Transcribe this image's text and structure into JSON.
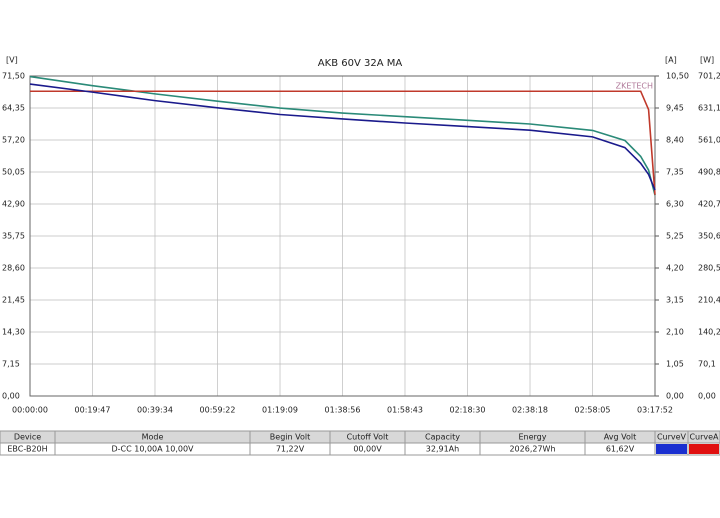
{
  "chart_data": {
    "type": "line",
    "title": "AKB 60V 32A MA",
    "watermark": "ZKETECH",
    "y_unit": "[V]",
    "y2_unit": "[A]",
    "y3_unit": "[W]",
    "x": [
      0,
      1187,
      2374,
      3562,
      4749,
      5936,
      7123,
      8310,
      9498,
      10685,
      11300,
      11600,
      11750,
      11872
    ],
    "xlim": [
      0,
      11872
    ],
    "xticks": [
      {
        "value": 0,
        "label": "00:00:00"
      },
      {
        "value": 1187,
        "label": "00:19:47"
      },
      {
        "value": 2374,
        "label": "00:39:34"
      },
      {
        "value": 3562,
        "label": "00:59:22"
      },
      {
        "value": 4749,
        "label": "01:19:09"
      },
      {
        "value": 5936,
        "label": "01:38:56"
      },
      {
        "value": 7123,
        "label": "01:58:43"
      },
      {
        "value": 8310,
        "label": "02:18:30"
      },
      {
        "value": 9498,
        "label": "02:38:18"
      },
      {
        "value": 10685,
        "label": "02:58:05"
      },
      {
        "value": 11872,
        "label": "03:17:52"
      }
    ],
    "ylim": [
      0,
      71.5
    ],
    "yticks": [
      {
        "value": 0,
        "label": "0,00"
      },
      {
        "value": 7.15,
        "label": "7,15"
      },
      {
        "value": 14.3,
        "label": "14,30"
      },
      {
        "value": 21.45,
        "label": "21,45"
      },
      {
        "value": 28.6,
        "label": "28,60"
      },
      {
        "value": 35.75,
        "label": "35,75"
      },
      {
        "value": 42.9,
        "label": "42,90"
      },
      {
        "value": 50.05,
        "label": "50,05"
      },
      {
        "value": 57.2,
        "label": "57,20"
      },
      {
        "value": 64.35,
        "label": "64,35"
      },
      {
        "value": 71.5,
        "label": "71,50"
      }
    ],
    "y2lim": [
      0,
      10.5
    ],
    "y2ticks": [
      {
        "value": 0,
        "label": "0,00"
      },
      {
        "value": 1.05,
        "label": "1,05"
      },
      {
        "value": 2.1,
        "label": "2,10"
      },
      {
        "value": 3.15,
        "label": "3,15"
      },
      {
        "value": 4.2,
        "label": "4,20"
      },
      {
        "value": 5.25,
        "label": "5,25"
      },
      {
        "value": 6.3,
        "label": "6,30"
      },
      {
        "value": 7.35,
        "label": "7,35"
      },
      {
        "value": 8.4,
        "label": "8,40"
      },
      {
        "value": 9.45,
        "label": "9,45"
      },
      {
        "value": 10.5,
        "label": "10,50"
      }
    ],
    "y3lim": [
      0,
      701.2
    ],
    "y3ticks": [
      {
        "value": 0,
        "label": "0,00"
      },
      {
        "value": 70.1,
        "label": "70,1"
      },
      {
        "value": 140.2,
        "label": "140,2"
      },
      {
        "value": 210.4,
        "label": "210,4"
      },
      {
        "value": 280.5,
        "label": "280,5"
      },
      {
        "value": 350.6,
        "label": "350,6"
      },
      {
        "value": 420.7,
        "label": "420,7"
      },
      {
        "value": 490.8,
        "label": "490,8"
      },
      {
        "value": 561.0,
        "label": "561,0"
      },
      {
        "value": 631.1,
        "label": "631,1"
      },
      {
        "value": 701.2,
        "label": "701,2"
      }
    ],
    "grid": true,
    "series": [
      {
        "color": "#2a8a78",
        "axis": "y3",
        "values": [
          700,
          680,
          662,
          646,
          631,
          620,
          612,
          604,
          596,
          582,
          560,
          525,
          495,
          440
        ]
      },
      {
        "color": "#c0392b",
        "axis": "y2",
        "values": [
          10.0,
          10.0,
          10.0,
          10.0,
          10.0,
          10.0,
          10.0,
          10.0,
          10.0,
          10.0,
          10.0,
          10.0,
          9.4,
          6.6
        ]
      },
      {
        "color": "#1a1a8c",
        "axis": "y",
        "values": [
          69.7,
          67.9,
          66.0,
          64.4,
          62.9,
          61.9,
          61.0,
          60.2,
          59.4,
          57.9,
          55.5,
          52.0,
          49.5,
          46.0
        ]
      }
    ]
  },
  "table": {
    "header": [
      "Device",
      "Mode",
      "Begin Volt",
      "Cutoff Volt",
      "Capacity",
      "Energy",
      "Avg Volt",
      "CurveV",
      "CurveA"
    ],
    "rows": [
      [
        "EBC-B20H",
        "D-CC 10,00A 10,00V",
        "71,22V",
        "00,00V",
        "32,91Ah",
        "2026,27Wh",
        "61,62V"
      ]
    ],
    "curve_colors": [
      "#1a2fd0",
      "#e01010"
    ]
  }
}
